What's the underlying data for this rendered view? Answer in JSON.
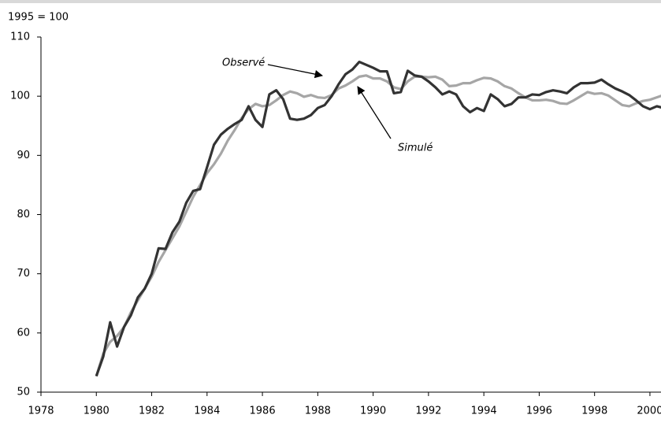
{
  "chart_data": {
    "type": "line",
    "subtitle": "1995 = 100",
    "annotations": [
      "Observé",
      "Simulé"
    ],
    "x": [
      1980,
      1980.25,
      1980.5,
      1980.75,
      1981,
      1981.25,
      1981.5,
      1981.75,
      1982,
      1982.25,
      1982.5,
      1982.75,
      1983,
      1983.25,
      1983.5,
      1983.75,
      1984,
      1984.25,
      1984.5,
      1984.75,
      1985,
      1985.25,
      1985.5,
      1985.75,
      1986,
      1986.25,
      1986.5,
      1986.75,
      1987,
      1987.25,
      1987.5,
      1987.75,
      1988,
      1988.25,
      1988.5,
      1988.75,
      1989,
      1989.25,
      1989.5,
      1989.75,
      1990,
      1990.25,
      1990.5,
      1990.75,
      1991,
      1991.25,
      1991.5,
      1991.75,
      1992,
      1992.25,
      1992.5,
      1992.75,
      1993,
      1993.25,
      1993.5,
      1993.75,
      1994,
      1994.25,
      1994.5,
      1994.75,
      1995,
      1995.25,
      1995.5,
      1995.75,
      1996,
      1996.25,
      1996.5,
      1996.75,
      1997,
      1997.25,
      1997.5,
      1997.75,
      1998,
      1998.25,
      1998.5,
      1998.75,
      1999,
      1999.25,
      1999.5,
      1999.75,
      2000,
      2000.25,
      2000.5
    ],
    "series": [
      {
        "name": "Observé",
        "color": "#333333",
        "values": [
          52.7,
          56,
          61.8,
          57.7,
          61,
          63,
          66,
          67.5,
          70,
          74.3,
          74.2,
          77,
          78.8,
          82,
          84,
          84.3,
          88,
          91.8,
          93.5,
          94.5,
          95.3,
          96,
          98.3,
          96,
          94.8,
          100.3,
          101,
          99.5,
          96.2,
          96,
          96.2,
          96.8,
          98,
          98.5,
          100,
          102,
          103.7,
          104.5,
          105.8,
          105.3,
          104.8,
          104.2,
          104.2,
          100.5,
          100.7,
          104.3,
          103.5,
          103.3,
          102.5,
          101.5,
          100.3,
          100.8,
          100.3,
          98.3,
          97.3,
          98,
          97.5,
          100.3,
          99.5,
          98.3,
          98.7,
          99.8,
          99.8,
          100.3,
          100.2,
          100.7,
          101,
          100.8,
          100.5,
          101.5,
          102.2,
          102.2,
          102.3,
          102.8,
          102,
          101.3,
          100.8,
          100.2,
          99.3,
          98.3,
          97.8,
          98.3,
          98
        ]
      },
      {
        "name": "Simulé",
        "color": "#a6a6a6",
        "values": [
          52.7,
          56.5,
          58.5,
          59.5,
          61,
          63.5,
          65.5,
          67.5,
          69.5,
          72,
          74,
          76,
          78,
          80.5,
          83,
          85,
          87,
          88.5,
          90.3,
          92.5,
          94.3,
          96.3,
          97.8,
          98.7,
          98.3,
          98.5,
          99.3,
          100.2,
          100.8,
          100.5,
          99.9,
          100.2,
          99.8,
          99.7,
          100.2,
          101.3,
          101.8,
          102.5,
          103.3,
          103.5,
          103,
          103,
          102.5,
          101.5,
          101.2,
          102.5,
          103.3,
          103.3,
          103.2,
          103.3,
          102.8,
          101.7,
          101.8,
          102.2,
          102.2,
          102.7,
          103.1,
          103,
          102.5,
          101.7,
          101.3,
          100.5,
          99.8,
          99.3,
          99.3,
          99.4,
          99.2,
          98.8,
          98.7,
          99.3,
          100,
          100.7,
          100.4,
          100.5,
          100.1,
          99.3,
          98.5,
          98.3,
          98.8,
          99.2,
          99.4,
          99.8,
          100.2
        ]
      }
    ],
    "xlim": [
      1978,
      2000.4
    ],
    "xticks": [
      1978,
      1980,
      1982,
      1984,
      1986,
      1988,
      1990,
      1992,
      1994,
      1996,
      1998,
      2000
    ],
    "ylim": [
      50,
      110
    ],
    "yticks": [
      50,
      60,
      70,
      80,
      90,
      100,
      110
    ],
    "grid": false
  }
}
